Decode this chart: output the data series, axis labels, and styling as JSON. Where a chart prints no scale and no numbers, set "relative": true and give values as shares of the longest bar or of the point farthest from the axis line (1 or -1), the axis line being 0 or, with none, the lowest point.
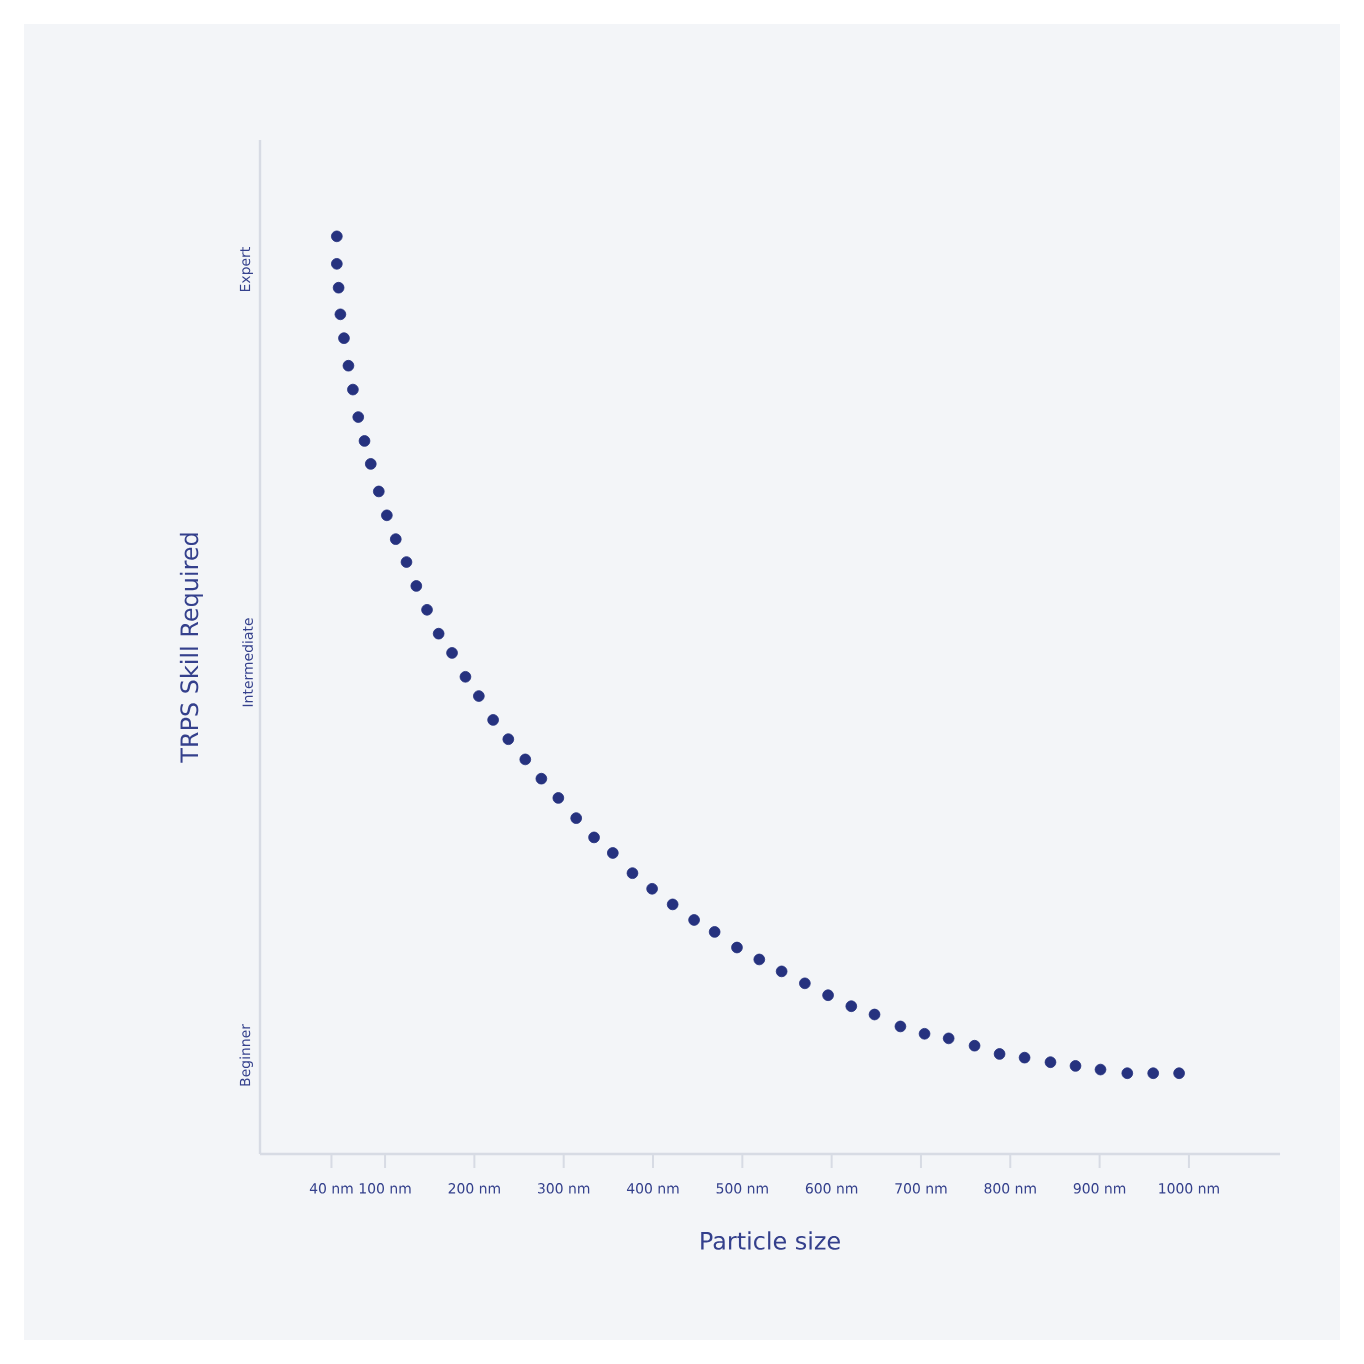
{
  "chart_data": {
    "type": "scatter",
    "xlabel": "Particle size",
    "ylabel": "TRPS Skill Required",
    "color": "#26327f",
    "marker": "circle",
    "relative": true,
    "x": [
      46,
      46,
      48,
      50,
      54,
      59,
      64,
      70,
      77,
      84,
      93,
      102,
      112,
      124,
      135,
      147,
      160,
      175,
      190,
      205,
      221,
      238,
      257,
      275,
      294,
      314,
      334,
      355,
      377,
      399,
      422,
      446,
      469,
      494,
      519,
      544,
      570,
      596,
      622,
      648,
      677,
      704,
      731,
      760,
      788,
      816,
      845,
      873,
      901,
      931,
      960,
      989
    ],
    "values": [
      1.0,
      0.97,
      0.944,
      0.915,
      0.889,
      0.859,
      0.833,
      0.803,
      0.777,
      0.752,
      0.722,
      0.696,
      0.67,
      0.645,
      0.619,
      0.593,
      0.567,
      0.546,
      0.52,
      0.499,
      0.473,
      0.452,
      0.43,
      0.409,
      0.388,
      0.366,
      0.345,
      0.328,
      0.306,
      0.289,
      0.272,
      0.255,
      0.242,
      0.225,
      0.212,
      0.199,
      0.186,
      0.173,
      0.161,
      0.152,
      0.139,
      0.131,
      0.126,
      0.118,
      0.109,
      0.105,
      0.1,
      0.096,
      0.092,
      0.088,
      0.088,
      0.088
    ],
    "xlim": [
      -40,
      1102
    ],
    "xticks": [
      {
        "value": 40,
        "label": "40 nm"
      },
      {
        "value": 100,
        "label": "100 nm"
      },
      {
        "value": 200,
        "label": "200 nm"
      },
      {
        "value": 300,
        "label": "300 nm"
      },
      {
        "value": 400,
        "label": "400 nm"
      },
      {
        "value": 500,
        "label": "500 nm"
      },
      {
        "value": 600,
        "label": "600 nm"
      },
      {
        "value": 700,
        "label": "700 nm"
      },
      {
        "value": 800,
        "label": "800 nm"
      },
      {
        "value": 900,
        "label": "900 nm"
      },
      {
        "value": 1000,
        "label": "1000 nm"
      }
    ],
    "annotations": [
      "Beginner",
      "Intermediate",
      "Expert"
    ]
  }
}
